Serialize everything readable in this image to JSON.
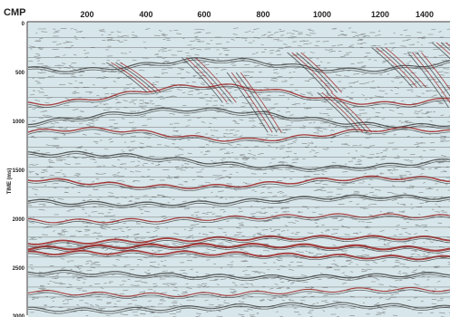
{
  "header": {
    "x_axis_name": "CMP",
    "x_ticks": [
      "200",
      "400",
      "600",
      "800",
      "1000",
      "1200",
      "1400"
    ]
  },
  "y_axis": {
    "label": "TIME (ms)",
    "ticks": [
      "0",
      "500",
      "1000",
      "1500",
      "2000",
      "2500",
      "3000"
    ]
  },
  "section": {
    "cmp_range": [
      40,
      1440
    ],
    "time_range_ms": [
      0,
      2950
    ],
    "background_color": "#d7e6ea",
    "trace_color": "#3d3d3d",
    "peak_color": "#9c1f1f",
    "grid_line_color": "#444444",
    "time_lines_ms": [
      150,
      250,
      350,
      450,
      550,
      650,
      750,
      850,
      950,
      1050,
      1150,
      1250,
      1350,
      1450,
      1550,
      1650,
      1750,
      1850,
      1950,
      2050,
      2150,
      2250,
      2350,
      2450,
      2550,
      2650,
      2750,
      2850
    ]
  }
}
